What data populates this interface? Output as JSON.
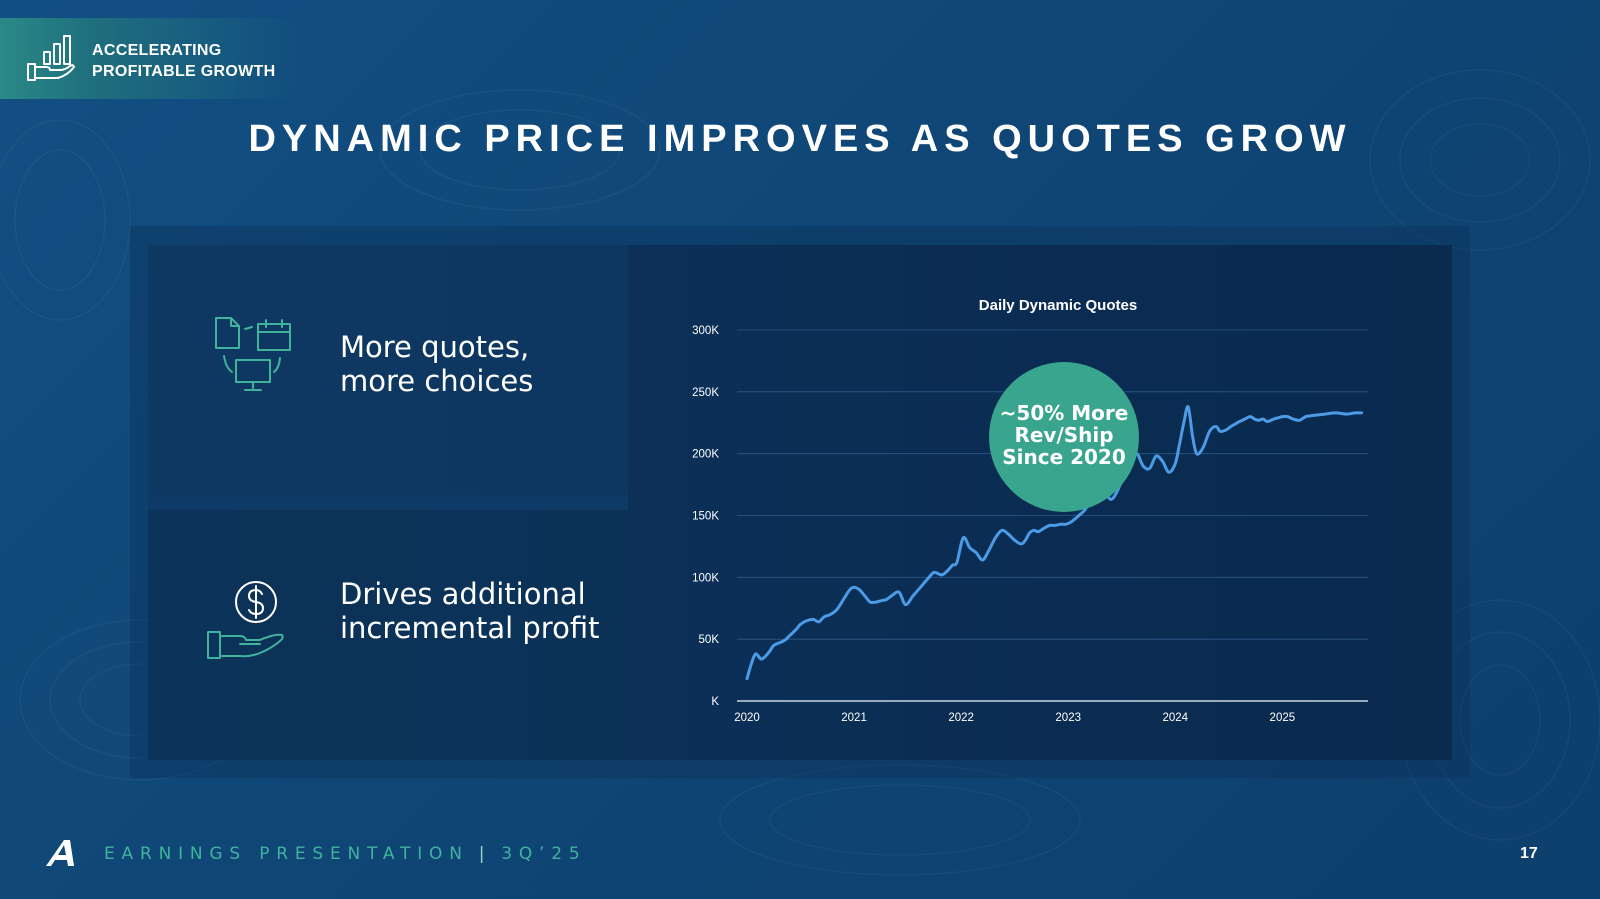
{
  "header": {
    "brand_line1": "ACCELERATING",
    "brand_line2": "PROFITABLE GROWTH",
    "brand_icon": "growth-bars-hand-icon"
  },
  "title": "DYNAMIC PRICE IMPROVES AS QUOTES GROW",
  "cards": [
    {
      "line1": "More quotes,",
      "line2": "more choices",
      "icon": "documents-calendar-monitor-icon"
    },
    {
      "line1": "Drives additional",
      "line2": "incremental profit",
      "icon": "dollar-hand-icon"
    }
  ],
  "callout": {
    "line1": "~50% More",
    "line2": "Rev/Ship",
    "line3": "Since 2020"
  },
  "footer": {
    "label": "EARNINGS PRESENTATION",
    "separator": "|",
    "period": "3Q’25",
    "page": "17",
    "logo_icon": "company-logo-icon"
  },
  "colors": {
    "accent_teal": "#3fb39c",
    "line_blue": "#4b9be6",
    "callout_fill": "#3aa58f"
  },
  "chart_data": {
    "type": "line",
    "title": "Daily Dynamic Quotes",
    "xlabel": "",
    "ylabel": "",
    "x_ticks": [
      "2020",
      "2021",
      "2022",
      "2023",
      "2024",
      "2025"
    ],
    "y_ticks": [
      "K",
      "50K",
      "100K",
      "150K",
      "200K",
      "250K",
      "300K"
    ],
    "ylim": [
      0,
      300000
    ],
    "xlim": [
      2020.0,
      2025.8
    ],
    "grid": true,
    "series": [
      {
        "x": [
          2020.0,
          2020.04,
          2020.08,
          2020.13,
          2020.17,
          2020.21,
          2020.25,
          2020.3,
          2020.35,
          2020.4,
          2020.46,
          2020.5,
          2020.56,
          2020.62,
          2020.67,
          2020.72,
          2020.78,
          2020.84,
          2020.9,
          2020.96,
          2021.0,
          2021.05,
          2021.1,
          2021.15,
          2021.2,
          2021.25,
          2021.3,
          2021.35,
          2021.42,
          2021.48,
          2021.55,
          2021.62,
          2021.7,
          2021.75,
          2021.82,
          2021.88,
          2021.92,
          2021.96,
          2022.02,
          2022.08,
          2022.14,
          2022.2,
          2022.26,
          2022.32,
          2022.38,
          2022.44,
          2022.5,
          2022.56,
          2022.6,
          2022.64,
          2022.68,
          2022.72,
          2022.78,
          2022.83,
          2022.88,
          2022.93,
          2022.98,
          2023.03,
          2023.1,
          2023.16,
          2023.22,
          2023.28,
          2023.34,
          2023.4,
          2023.46,
          2023.52,
          2023.58,
          2023.64,
          2023.7,
          2023.76,
          2023.82,
          2023.88,
          2023.94,
          2024.0,
          2024.04,
          2024.08,
          2024.12,
          2024.16,
          2024.2,
          2024.26,
          2024.32,
          2024.38,
          2024.42,
          2024.47,
          2024.52,
          2024.56,
          2024.6,
          2024.65,
          2024.7,
          2024.74,
          2024.78,
          2024.82,
          2024.86,
          2024.92,
          2024.96,
          2025.0,
          2025.05,
          2025.1,
          2025.16,
          2025.22,
          2025.3,
          2025.4,
          2025.5,
          2025.6,
          2025.68,
          2025.74
        ],
        "y": [
          18000,
          30000,
          38000,
          34000,
          36000,
          40000,
          45000,
          47000,
          49000,
          53000,
          58000,
          62000,
          65000,
          66000,
          64000,
          68000,
          70000,
          74000,
          82000,
          90000,
          92000,
          90000,
          85000,
          80000,
          80000,
          81000,
          82000,
          85000,
          88000,
          78000,
          85000,
          92000,
          100000,
          104000,
          102000,
          106000,
          110000,
          112000,
          132000,
          124000,
          120000,
          114000,
          122000,
          132000,
          138000,
          135000,
          130000,
          127000,
          130000,
          136000,
          138000,
          137000,
          140000,
          142000,
          142000,
          143000,
          143000,
          145000,
          150000,
          155000,
          165000,
          178000,
          170000,
          163000,
          170000,
          183000,
          193000,
          200000,
          190000,
          188000,
          198000,
          194000,
          185000,
          192000,
          208000,
          225000,
          238000,
          215000,
          200000,
          205000,
          218000,
          222000,
          218000,
          219000,
          222000,
          224000,
          226000,
          228000,
          230000,
          228000,
          227000,
          228000,
          226000,
          228000,
          229000,
          230000,
          230000,
          228000,
          227000,
          230000,
          231000,
          232000,
          233000,
          232000,
          233000,
          233000
        ]
      }
    ]
  }
}
